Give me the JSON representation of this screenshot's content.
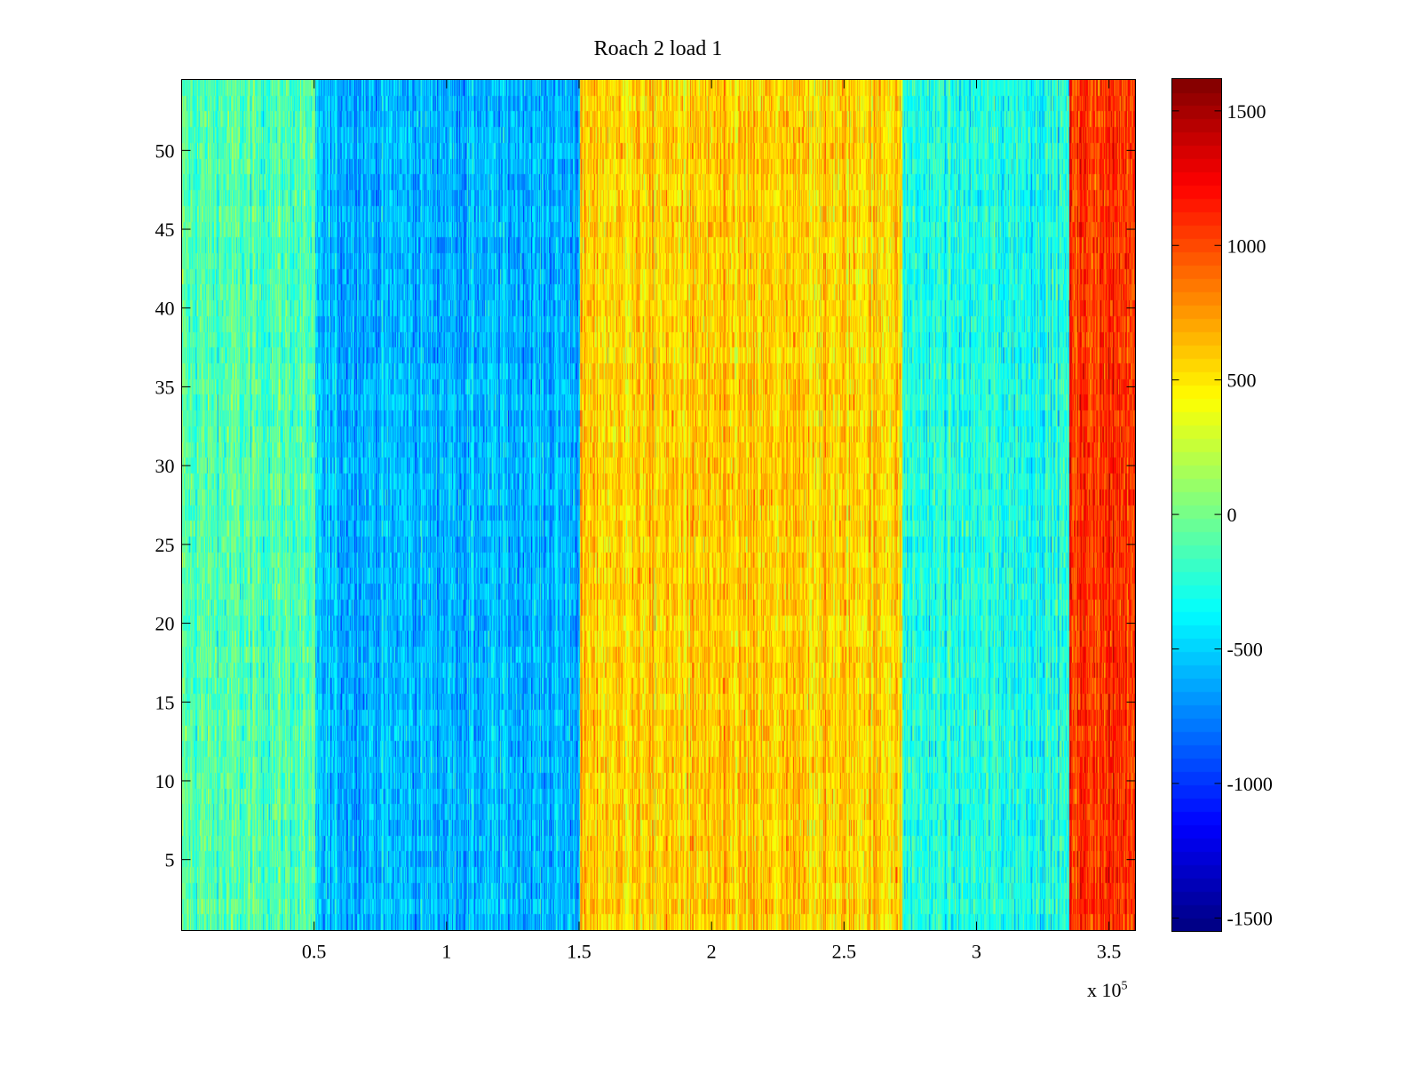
{
  "chart_data": {
    "type": "heatmap",
    "title": "Roach 2 load 1",
    "xlabel": "",
    "ylabel": "",
    "x_multiplier": {
      "prefix": "x 10",
      "exponent": "5"
    },
    "xlim": [
      0,
      3.6
    ],
    "ylim": [
      0.5,
      54.5
    ],
    "x_ticks": [
      0.5,
      1,
      1.5,
      2,
      2.5,
      3,
      3.5
    ],
    "x_tick_labels": [
      "0.5",
      "1",
      "1.5",
      "2",
      "2.5",
      "3",
      "3.5"
    ],
    "y_ticks": [
      5,
      10,
      15,
      20,
      25,
      30,
      35,
      40,
      45,
      50
    ],
    "y_tick_labels": [
      "5",
      "10",
      "15",
      "20",
      "25",
      "30",
      "35",
      "40",
      "45",
      "50"
    ],
    "rows": 54,
    "colormap": "jet",
    "colorbar": {
      "range": [
        -1550,
        1620
      ],
      "ticks": [
        1500,
        1000,
        500,
        0,
        -500,
        -1000,
        -1500
      ],
      "tick_labels": [
        "1500",
        "1000",
        "500",
        "0",
        "-500",
        "-1000",
        "-1500"
      ]
    },
    "column_bands": [
      {
        "x_start": 0,
        "x_end": 0.5,
        "mean_value": -120
      },
      {
        "x_start": 0.5,
        "x_end": 1.5,
        "mean_value": -580
      },
      {
        "x_start": 1.5,
        "x_end": 2.72,
        "mean_value": 560
      },
      {
        "x_start": 2.72,
        "x_end": 3.35,
        "mean_value": -280
      },
      {
        "x_start": 3.35,
        "x_end": 3.6,
        "mean_value": 1080
      }
    ],
    "grid": false
  }
}
